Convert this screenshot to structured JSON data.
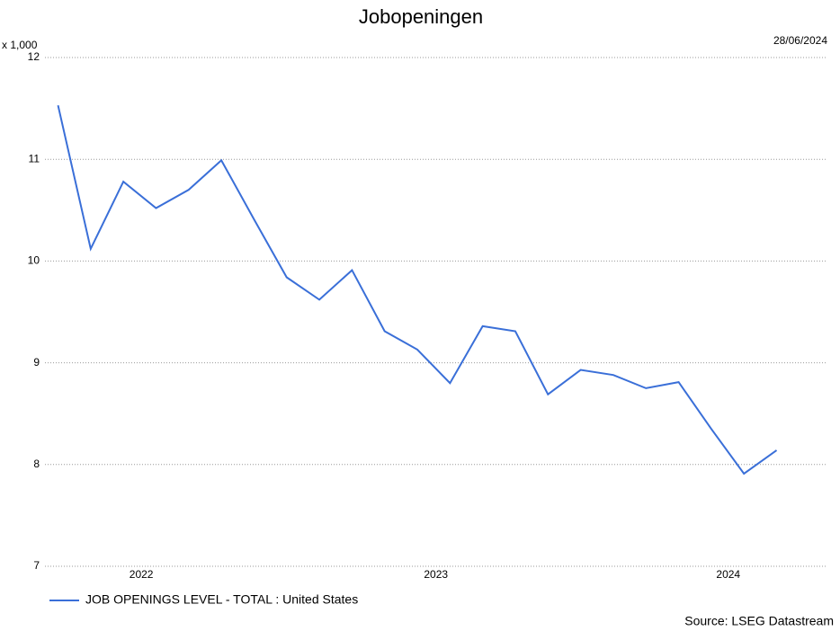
{
  "chart_data": {
    "type": "line",
    "title": "Jobopeningen",
    "unit_label": "x 1,000",
    "date": "28/06/2024",
    "source": "Source: LSEG Datastream",
    "x": [
      0,
      1,
      2,
      3,
      4,
      5,
      6,
      7,
      8,
      9,
      10,
      11,
      12,
      13,
      14,
      15,
      16,
      17,
      18,
      19,
      20,
      21,
      22
    ],
    "series": [
      {
        "name": "JOB OPENINGS LEVEL - TOTAL : United States",
        "color": "#3a6fd8",
        "values": [
          11.53,
          10.12,
          10.78,
          10.52,
          10.7,
          10.99,
          10.41,
          9.84,
          9.62,
          9.91,
          9.31,
          9.13,
          8.8,
          9.36,
          9.31,
          8.69,
          8.93,
          8.88,
          8.75,
          8.81,
          8.35,
          7.91,
          8.14
        ]
      }
    ],
    "xlim": [
      -0.4,
      23.5
    ],
    "xticks": [
      {
        "value": 2.55,
        "label": "2022"
      },
      {
        "value": 11.57,
        "label": "2023"
      },
      {
        "value": 20.52,
        "label": "2024"
      }
    ],
    "ylim": [
      7,
      12
    ],
    "yticks": [
      7,
      8,
      9,
      10,
      11,
      12
    ],
    "grid": true
  }
}
